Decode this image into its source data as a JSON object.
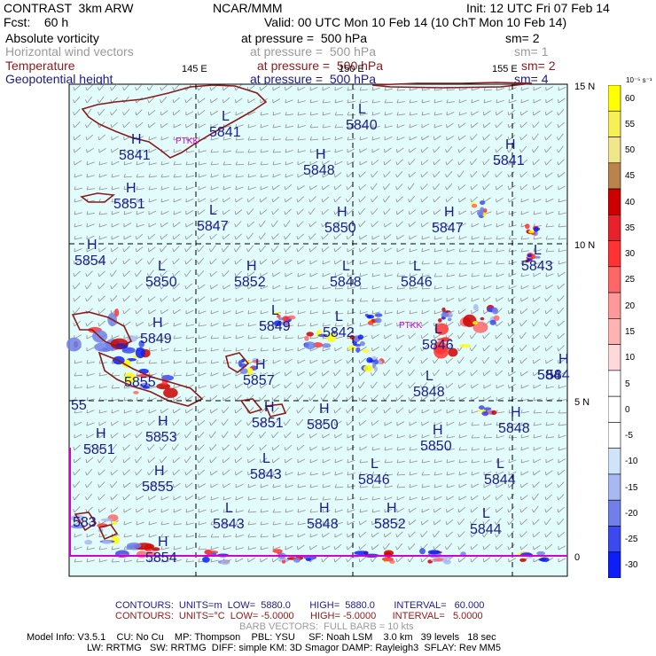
{
  "header": {
    "model": "CONTRAST  3km ARW",
    "org": "NCAR/MMM",
    "init": "Init: 12 UTC Fri 07 Feb 14",
    "fcst": "Fcst:    60 h",
    "valid": "Valid: 00 UTC Mon 10 Feb 14 (10 ChT Mon 10 Feb 14)"
  },
  "fields": [
    {
      "name": "Absolute vorticity",
      "level": "at pressure =  500 hPa",
      "smooth": "sm= 2",
      "color": "#000000"
    },
    {
      "name": "Horizontal wind vectors",
      "level": "at pressure =  500 hPa",
      "smooth": "sm= 1",
      "color": "#9a9a9a"
    },
    {
      "name": "Temperature",
      "level": "at pressure =  500 hPa",
      "smooth": "sm= 2",
      "color": "#8b1a1a"
    },
    {
      "name": "Geopotential height",
      "level": "at pressure =  500 hPa",
      "smooth": "sm= 4",
      "color": "#1a1a8c"
    }
  ],
  "map": {
    "lon_labels": [
      "145 E",
      "150 E",
      "155 E"
    ],
    "lat_labels": [
      "15 N",
      "10 N",
      "5 N",
      "0"
    ],
    "station_labels": [
      "PTKK"
    ],
    "height_centers": [
      {
        "type": "L",
        "value": "5841"
      },
      {
        "type": "L",
        "value": "5840"
      },
      {
        "type": "H",
        "value": "5841"
      },
      {
        "type": "H",
        "value": "5841"
      },
      {
        "type": "H",
        "value": "5848"
      },
      {
        "type": "H",
        "value": "5851"
      },
      {
        "type": "L",
        "value": "5847"
      },
      {
        "type": "H",
        "value": "5850"
      },
      {
        "type": "H",
        "value": "5847"
      },
      {
        "type": "H",
        "value": "5854"
      },
      {
        "type": "L",
        "value": "5850"
      },
      {
        "type": "H",
        "value": "5852"
      },
      {
        "type": "L",
        "value": "5848"
      },
      {
        "type": "L",
        "value": "5846"
      },
      {
        "type": "L",
        "value": "5843"
      },
      {
        "type": "L",
        "value": "5849"
      },
      {
        "type": "L",
        "value": "5842"
      },
      {
        "type": "L",
        "value": "5846"
      },
      {
        "type": "H",
        "value": "5849"
      },
      {
        "type": "H",
        "value": "5857"
      },
      {
        "type": "L",
        "value": "5848"
      },
      {
        "type": "H",
        "value": "584"
      },
      {
        "type": "H",
        "value": "5851"
      },
      {
        "type": "H",
        "value": "5850"
      },
      {
        "type": "H",
        "value": "5848"
      },
      {
        "type": "H",
        "value": "5853"
      },
      {
        "type": "H",
        "value": "5850"
      },
      {
        "type": "H",
        "value": "5851"
      },
      {
        "type": "L",
        "value": "5843"
      },
      {
        "type": "L",
        "value": "5846"
      },
      {
        "type": "L",
        "value": "5844"
      },
      {
        "type": "H",
        "value": "5855"
      },
      {
        "type": "L",
        "value": "5843"
      },
      {
        "type": "H",
        "value": "5848"
      },
      {
        "type": "H",
        "value": "5852"
      },
      {
        "type": "L",
        "value": "5844"
      },
      {
        "type": "H",
        "value": "5854"
      },
      {
        "type": "",
        "value": "55"
      },
      {
        "type": "",
        "value": "5855"
      },
      {
        "type": "",
        "value": "584"
      },
      {
        "type": "",
        "value": "583"
      }
    ]
  },
  "colorbar": {
    "unit": "10⁻⁵ s⁻¹",
    "levels": [
      "60",
      "55",
      "50",
      "45",
      "40",
      "35",
      "30",
      "25",
      "20",
      "15",
      "10",
      "5",
      "0",
      "-5",
      "-10",
      "-15",
      "-20",
      "-25",
      "-30"
    ],
    "colors": [
      "#ffff00",
      "#f7f055",
      "#f0e68c",
      "#b8844c",
      "#cc0000",
      "#e8222b",
      "#ff3333",
      "#ff6666",
      "#ff9999",
      "#ffb3b3",
      "#ffd9d9",
      "#ffffff",
      "#ffffff",
      "#ffffff",
      "#cfe4f8",
      "#a8b8f0",
      "#7080e8",
      "#3a4aee",
      "#0d1ef8"
    ]
  },
  "footer": {
    "line1": "CONTOURS:  UNITS=m  LOW=  5880.0       HIGH=  5880.0       INTERVAL=   60.000",
    "line2": "CONTOURS:  UNITS=°C  LOW= -5.0000      HIGH= -5.0000      INTERVAL=   5.0000",
    "line3": "BARB VECTORS:  FULL BARB = 10 kts",
    "line4": "Model Info: V3.5.1    CU: No Cu    MP: Thompson    PBL: YSU     SF: Noah LSM    3.0 km   39 levels   18 sec",
    "line5": "LW: RRTMG   SW: RRTMG  DIFF: simple KM: 3D Smagor DAMP: Rayleigh3  SFLAY: Rev MM5"
  }
}
